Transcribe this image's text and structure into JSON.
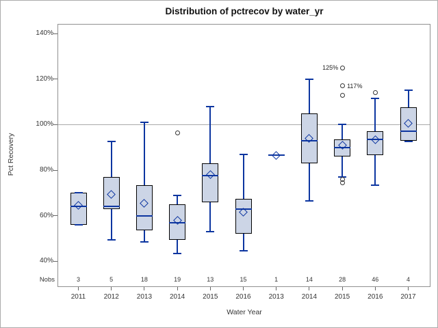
{
  "chart_data": {
    "type": "boxplot",
    "title": "Distribution of pctrecov by water_yr",
    "xlabel": "Water Year",
    "ylabel": "Pct Recovery",
    "nobs_label": "Nobs",
    "ylim": [
      28.7,
      144.2
    ],
    "yticks": [
      {
        "value": 40,
        "label": "40%"
      },
      {
        "value": 60,
        "label": "60%"
      },
      {
        "value": 80,
        "label": "80%"
      },
      {
        "value": 100,
        "label": "100%"
      },
      {
        "value": 120,
        "label": "120%"
      },
      {
        "value": 140,
        "label": "140%"
      }
    ],
    "reference_line": 100,
    "grid": false,
    "legend": "none",
    "categories": [
      "2011",
      "2012",
      "2013",
      "2014",
      "2015",
      "2016",
      "2013",
      "2014",
      "2015",
      "2016",
      "2017"
    ],
    "nobs": [
      3,
      5,
      18,
      19,
      13,
      15,
      1,
      14,
      28,
      46,
      4
    ],
    "boxes": [
      {
        "category": "2011",
        "nobs": 3,
        "low": 56,
        "q1": 56,
        "median": 64,
        "q3": 70,
        "high": 70,
        "mean": 64.5,
        "outliers": []
      },
      {
        "category": "2012",
        "nobs": 5,
        "low": 49.5,
        "q1": 63,
        "median": 64,
        "q3": 77,
        "high": 92.5,
        "mean": 69.5,
        "outliers": []
      },
      {
        "category": "2013",
        "nobs": 18,
        "low": 48.5,
        "q1": 53.5,
        "median": 60,
        "q3": 73.5,
        "high": 101,
        "mean": 65.5,
        "outliers": []
      },
      {
        "category": "2014",
        "nobs": 19,
        "low": 43.5,
        "q1": 49.5,
        "median": 57,
        "q3": 65,
        "high": 69,
        "mean": 58,
        "outliers": [
          {
            "value": 96.5
          }
        ]
      },
      {
        "category": "2015",
        "nobs": 13,
        "low": 53,
        "q1": 66,
        "median": 77.5,
        "q3": 83,
        "high": 108,
        "mean": 78,
        "outliers": []
      },
      {
        "category": "2016",
        "nobs": 15,
        "low": 44.5,
        "q1": 52,
        "median": 63,
        "q3": 67.5,
        "high": 87,
        "mean": 61.5,
        "outliers": []
      },
      {
        "category": "2013",
        "nobs": 1,
        "low": 86.5,
        "q1": 86.5,
        "median": 86.5,
        "q3": 86.5,
        "high": 86.5,
        "mean": 86.5,
        "outliers": []
      },
      {
        "category": "2014",
        "nobs": 14,
        "low": 66.5,
        "q1": 83,
        "median": 93,
        "q3": 105,
        "high": 120,
        "mean": 94,
        "outliers": []
      },
      {
        "category": "2015",
        "nobs": 28,
        "low": 77,
        "q1": 86,
        "median": 90,
        "q3": 93.5,
        "high": 100,
        "mean": 91,
        "outliers": [
          {
            "value": 125,
            "label": "125%",
            "label_side": "left"
          },
          {
            "value": 117,
            "label": "117%",
            "label_side": "right"
          },
          {
            "value": 113
          },
          {
            "value": 76
          },
          {
            "value": 74.5
          }
        ]
      },
      {
        "category": "2016",
        "nobs": 46,
        "low": 73.5,
        "q1": 86.5,
        "median": 93.5,
        "q3": 97,
        "high": 111.5,
        "mean": 93.5,
        "outliers": [
          {
            "value": 114
          }
        ]
      },
      {
        "category": "2017",
        "nobs": 4,
        "low": 92.5,
        "q1": 93,
        "median": 97,
        "q3": 107.5,
        "high": 115,
        "mean": 100.5,
        "outliers": []
      }
    ],
    "colors": {
      "box_fill": "#ccd5e6",
      "box_border": "#000000",
      "line": "#0c35a0",
      "reference_line": "#a8a8a8",
      "frame": "#8f8f8f",
      "text": "#333333"
    }
  }
}
